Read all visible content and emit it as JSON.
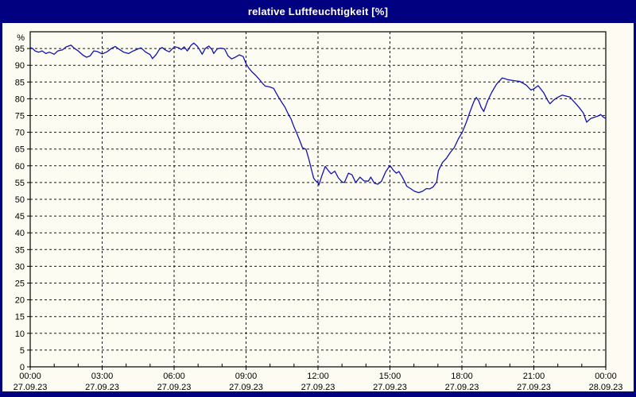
{
  "window": {
    "title": "relative Luftfeuchtigkeit [%]"
  },
  "colors": {
    "title_bar_bg": "#000080",
    "title_text": "#ffffff",
    "plot_bg": "#fcfcf2",
    "grid": "#1a1a1a",
    "frame": "#000000",
    "line": "#1212b4",
    "label": "#000000"
  },
  "chart_data": {
    "type": "line",
    "title": "relative Luftfeuchtigkeit [%]",
    "xlabel": "",
    "ylabel": "%",
    "ylim": [
      0,
      100
    ],
    "xlim_hours": [
      0,
      24
    ],
    "grid": true,
    "legend": "none",
    "y_ticks": [
      0,
      5,
      10,
      15,
      20,
      25,
      30,
      35,
      40,
      45,
      50,
      55,
      60,
      65,
      70,
      75,
      80,
      85,
      90,
      95
    ],
    "x_ticks": [
      {
        "hour": 0,
        "time": "00:00",
        "date": "27.09.23"
      },
      {
        "hour": 3,
        "time": "03:00",
        "date": "27.09.23"
      },
      {
        "hour": 6,
        "time": "06:00",
        "date": "27.09.23"
      },
      {
        "hour": 9,
        "time": "09:00",
        "date": "27.09.23"
      },
      {
        "hour": 12,
        "time": "12:00",
        "date": "27.09.23"
      },
      {
        "hour": 15,
        "time": "15:00",
        "date": "27.09.23"
      },
      {
        "hour": 18,
        "time": "18:00",
        "date": "27.09.23"
      },
      {
        "hour": 21,
        "time": "21:00",
        "date": "27.09.23"
      },
      {
        "hour": 24,
        "time": "00:00",
        "date": "28.09.23"
      }
    ],
    "minor_tick_every_hours": 1,
    "series": [
      {
        "name": "relative Luftfeuchtigkeit",
        "unit": "%",
        "points": [
          [
            0,
            95.3
          ],
          [
            0.1,
            95
          ],
          [
            0.2,
            94.3
          ],
          [
            0.35,
            93.9
          ],
          [
            0.5,
            94.3
          ],
          [
            0.65,
            93.5
          ],
          [
            0.8,
            93.9
          ],
          [
            1,
            93.3
          ],
          [
            1.15,
            94.3
          ],
          [
            1.35,
            94.6
          ],
          [
            1.5,
            95.5
          ],
          [
            1.7,
            96
          ],
          [
            1.85,
            95
          ],
          [
            2,
            94.3
          ],
          [
            2.2,
            93
          ],
          [
            2.35,
            92.4
          ],
          [
            2.5,
            92.8
          ],
          [
            2.65,
            94.3
          ],
          [
            2.8,
            94.1
          ],
          [
            3,
            93.4
          ],
          [
            3.2,
            94
          ],
          [
            3.4,
            95.1
          ],
          [
            3.55,
            95.6
          ],
          [
            3.7,
            94.8
          ],
          [
            3.9,
            93.9
          ],
          [
            4.1,
            93.5
          ],
          [
            4.3,
            94.3
          ],
          [
            4.5,
            94.9
          ],
          [
            4.62,
            95.2
          ],
          [
            4.8,
            94
          ],
          [
            5,
            93.2
          ],
          [
            5.1,
            92
          ],
          [
            5.25,
            93.2
          ],
          [
            5.4,
            94.9
          ],
          [
            5.5,
            95.3
          ],
          [
            5.65,
            94.5
          ],
          [
            5.8,
            94
          ],
          [
            5.95,
            95.1
          ],
          [
            6.05,
            95.5
          ],
          [
            6.2,
            95.2
          ],
          [
            6.3,
            94.7
          ],
          [
            6.42,
            95.5
          ],
          [
            6.55,
            94.3
          ],
          [
            6.7,
            95.9
          ],
          [
            6.82,
            96.6
          ],
          [
            6.95,
            95.8
          ],
          [
            7.05,
            94.8
          ],
          [
            7.17,
            93.3
          ],
          [
            7.3,
            95
          ],
          [
            7.45,
            95.7
          ],
          [
            7.58,
            94.7
          ],
          [
            7.65,
            93.5
          ],
          [
            7.8,
            94.9
          ],
          [
            7.95,
            95.1
          ],
          [
            8.1,
            94.9
          ],
          [
            8.25,
            92.8
          ],
          [
            8.4,
            91.9
          ],
          [
            8.55,
            92.4
          ],
          [
            8.72,
            93.1
          ],
          [
            8.88,
            92.6
          ],
          [
            9,
            90.5
          ],
          [
            9.1,
            89.3
          ],
          [
            9.25,
            88
          ],
          [
            9.4,
            87
          ],
          [
            9.55,
            85.8
          ],
          [
            9.7,
            84.5
          ],
          [
            9.8,
            83.8
          ],
          [
            10,
            83.5
          ],
          [
            10.15,
            83.1
          ],
          [
            10.25,
            81.8
          ],
          [
            10.37,
            80.3
          ],
          [
            10.5,
            78.8
          ],
          [
            10.62,
            77.5
          ],
          [
            10.75,
            75.6
          ],
          [
            10.88,
            73.9
          ],
          [
            11,
            71.6
          ],
          [
            11.12,
            69.6
          ],
          [
            11.25,
            67.3
          ],
          [
            11.35,
            65.4
          ],
          [
            11.5,
            64.9
          ],
          [
            11.62,
            62
          ],
          [
            11.72,
            59
          ],
          [
            11.82,
            56.3
          ],
          [
            11.9,
            55.5
          ],
          [
            11.98,
            55.2
          ],
          [
            12.04,
            54.3
          ],
          [
            12.15,
            56.8
          ],
          [
            12.3,
            59.8
          ],
          [
            12.45,
            58.4
          ],
          [
            12.55,
            57.6
          ],
          [
            12.7,
            58.4
          ],
          [
            12.85,
            56.4
          ],
          [
            13,
            55.2
          ],
          [
            13.1,
            55
          ],
          [
            13.27,
            57.8
          ],
          [
            13.42,
            57.3
          ],
          [
            13.57,
            55
          ],
          [
            13.75,
            56.6
          ],
          [
            13.92,
            55.5
          ],
          [
            14.1,
            55.4
          ],
          [
            14.2,
            56.6
          ],
          [
            14.35,
            54.8
          ],
          [
            14.5,
            54.5
          ],
          [
            14.65,
            55.4
          ],
          [
            14.82,
            58.2
          ],
          [
            15,
            60.1
          ],
          [
            15.15,
            58.6
          ],
          [
            15.27,
            57.8
          ],
          [
            15.37,
            58.3
          ],
          [
            15.5,
            56.8
          ],
          [
            15.62,
            55.2
          ],
          [
            15.7,
            53.9
          ],
          [
            15.86,
            53.2
          ],
          [
            16.02,
            52.4
          ],
          [
            16.2,
            52
          ],
          [
            16.36,
            52.4
          ],
          [
            16.52,
            53.2
          ],
          [
            16.65,
            53.1
          ],
          [
            16.8,
            53.7
          ],
          [
            16.95,
            55.2
          ],
          [
            17.02,
            58.5
          ],
          [
            17.19,
            61
          ],
          [
            17.35,
            62.2
          ],
          [
            17.52,
            64
          ],
          [
            17.68,
            65.4
          ],
          [
            17.85,
            68
          ],
          [
            18.02,
            70.1
          ],
          [
            18.18,
            72.9
          ],
          [
            18.35,
            76.4
          ],
          [
            18.5,
            79.2
          ],
          [
            18.6,
            80.4
          ],
          [
            18.7,
            79.4
          ],
          [
            18.8,
            77.5
          ],
          [
            18.91,
            76.2
          ],
          [
            19.08,
            79.5
          ],
          [
            19.25,
            82
          ],
          [
            19.45,
            84.4
          ],
          [
            19.68,
            86.2
          ],
          [
            19.8,
            86
          ],
          [
            19.91,
            85.7
          ],
          [
            20.18,
            85.4
          ],
          [
            20.41,
            85.2
          ],
          [
            20.68,
            84.1
          ],
          [
            20.88,
            82.6
          ],
          [
            21.01,
            83
          ],
          [
            21.18,
            83.9
          ],
          [
            21.41,
            81.8
          ],
          [
            21.57,
            79.6
          ],
          [
            21.67,
            78.5
          ],
          [
            21.84,
            79.7
          ],
          [
            22.01,
            80.5
          ],
          [
            22.18,
            81.1
          ],
          [
            22.34,
            80.8
          ],
          [
            22.51,
            80.5
          ],
          [
            22.61,
            79.6
          ],
          [
            22.77,
            78.4
          ],
          [
            22.9,
            77.3
          ],
          [
            23.07,
            75.7
          ],
          [
            23.2,
            73
          ],
          [
            23.37,
            74.1
          ],
          [
            23.53,
            74.5
          ],
          [
            23.7,
            74.9
          ],
          [
            23.78,
            75.3
          ],
          [
            23.9,
            74.5
          ],
          [
            24,
            74.1
          ]
        ]
      }
    ]
  }
}
